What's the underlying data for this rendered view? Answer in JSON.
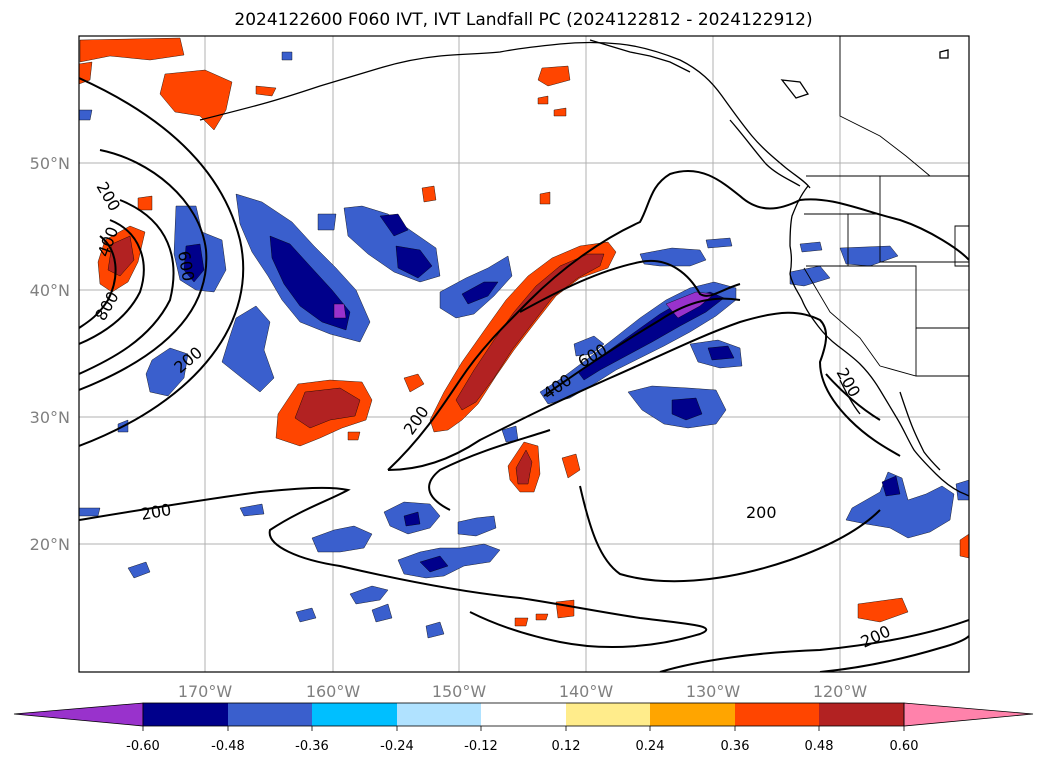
{
  "title": "2024122600 F060 IVT, IVT Landfall PC (2024122812 - 2024122912)",
  "lat_labels": [
    "50°N",
    "40°N",
    "30°N",
    "20°N"
  ],
  "lon_labels": [
    "170°W",
    "160°W",
    "150°W",
    "140°W",
    "130°W",
    "120°W"
  ],
  "contour_labels": [
    "200",
    "400",
    "600",
    "800",
    "600",
    "200",
    "200",
    "400",
    "600",
    "200",
    "200",
    "200",
    "200"
  ],
  "colorbar": {
    "ticks": [
      "-0.60",
      "-0.48",
      "-0.36",
      "-0.24",
      "-0.12",
      "0.12",
      "0.24",
      "0.36",
      "0.48",
      "0.60"
    ],
    "colors": [
      "#9932CC",
      "#00008B",
      "#3A5FCD",
      "#00BFFF",
      "#B0E2FF",
      "#FFFFFF",
      "#FFEC8B",
      "#FFA500",
      "#FF4500",
      "#B22222",
      "#FF82AB"
    ]
  },
  "colors": {
    "neg_extreme": "#9932CC",
    "neg_048": "#00008B",
    "neg_036": "#3A5FCD",
    "neg_024": "#00BFFF",
    "neg_012": "#B0E2FF",
    "pos_012": "#FFEC8B",
    "pos_024": "#FFA500",
    "pos_036": "#FF4500",
    "pos_048": "#B22222",
    "pos_extreme": "#FF82AB"
  }
}
